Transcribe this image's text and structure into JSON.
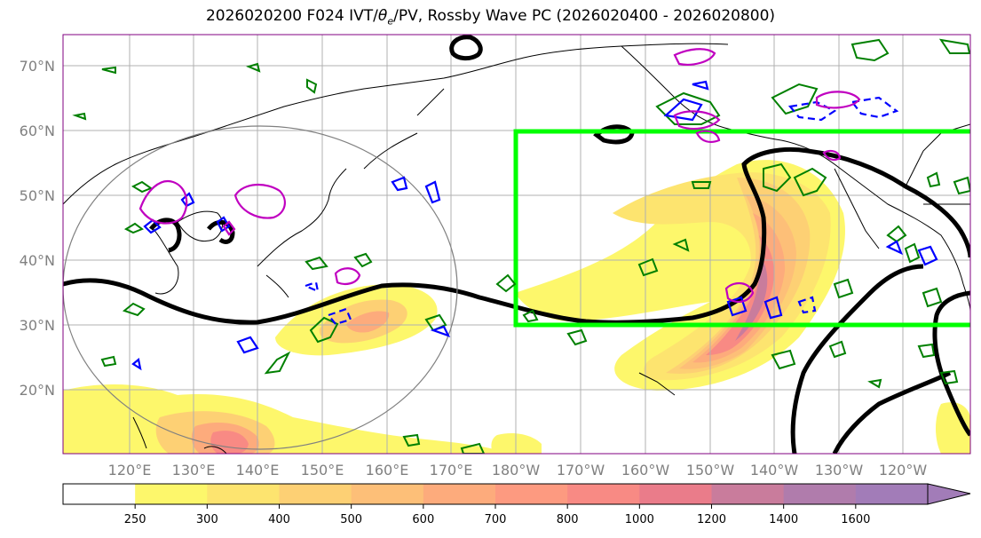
{
  "title_prefix": "2026020200 F024 IVT/",
  "title_theta": "θ",
  "title_theta_sub": "e",
  "title_suffix": "/PV, Rossby Wave PC (2026020400 - 2026020800)",
  "lat_labels": [
    "70°N",
    "60°N",
    "50°N",
    "40°N",
    "30°N",
    "20°N"
  ],
  "lon_labels": [
    "120°E",
    "130°E",
    "140°E",
    "150°E",
    "160°E",
    "170°E",
    "180°W",
    "170°W",
    "160°W",
    "150°W",
    "140°W",
    "130°W",
    "120°W"
  ],
  "colorbar": {
    "levels": [
      "250",
      "300",
      "400",
      "500",
      "600",
      "700",
      "800",
      "1000",
      "1200",
      "1400",
      "1600"
    ],
    "colors": [
      "#ffffff",
      "#fdf76b",
      "#fde46f",
      "#fdd074",
      "#fdbf78",
      "#fdab7c",
      "#fd9a80",
      "#f88a84",
      "#ea7c8a",
      "#c97c9c",
      "#b07cac",
      "#a27cb8"
    ]
  },
  "contour_colors": {
    "pv": "#000000",
    "theta_e_green": "#008000",
    "theta_e_blue": "#0000ff",
    "theta_e_magenta": "#c000c0",
    "rossby_box": "#00ff00",
    "range_circle": "#808080"
  }
}
